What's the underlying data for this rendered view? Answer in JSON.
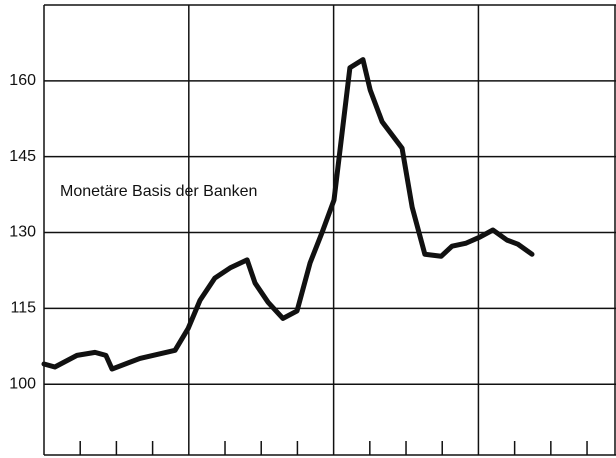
{
  "chart_data": {
    "type": "line",
    "annotation": "Monetäre Basis der Banken",
    "x": [
      0,
      0.3,
      0.91,
      1.41,
      1.71,
      1.88,
      2.65,
      3.62,
      3.98,
      4.31,
      4.72,
      5.14,
      5.61,
      5.83,
      6.19,
      6.6,
      6.99,
      7.35,
      7.68,
      8.01,
      8.45,
      8.81,
      9.01,
      9.34,
      9.89,
      10.17,
      10.52,
      10.97,
      11.27,
      11.66,
      12.04,
      12.4,
      12.79,
      13.09,
      13.48
    ],
    "series": [
      {
        "color": "#111111",
        "values": [
          104,
          103.4,
          105.7,
          106.3,
          105.7,
          103,
          105.1,
          106.7,
          111,
          116.6,
          121,
          123,
          124.6,
          120,
          116.2,
          113,
          114.5,
          124,
          130,
          136.4,
          162.6,
          164.2,
          158.2,
          151.9,
          146.7,
          135,
          125.7,
          125.3,
          127.3,
          127.9,
          129.1,
          130.5,
          128.5,
          127.7,
          125.7
        ]
      }
    ],
    "xlim": [
      0,
      15.8
    ],
    "xticks": [
      1,
      2,
      3,
      5,
      6,
      7,
      9,
      10,
      11,
      13,
      14,
      15
    ],
    "xgridlines": [
      4,
      8,
      12
    ],
    "ylim": [
      86,
      175
    ],
    "yticks": [
      100,
      115,
      130,
      145,
      160
    ],
    "grid": true
  }
}
